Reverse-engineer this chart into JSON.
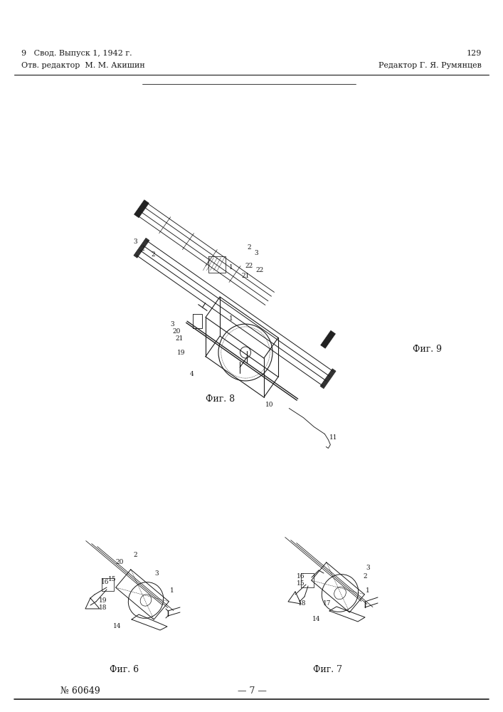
{
  "bg_color": "#ffffff",
  "page_width": 7.07,
  "page_height": 10.0,
  "line_color": "#1a1a1a",
  "text_color": "#1a1a1a",
  "header_left": "№ 60649",
  "header_center": "— 7 —",
  "fig6_label": "Фиг. 6",
  "fig7_label": "Фиг. 7",
  "fig8_label": "Фиг. 8",
  "fig9_label": "Фиг. 9",
  "footer_left": "Отв. редактор  М. М. Акишин",
  "footer_right": "Редактор Г. Я. Румянцев",
  "footer_bottom_left": "9   Свод. Выпуск 1, 1942 г.",
  "footer_bottom_right": "129"
}
